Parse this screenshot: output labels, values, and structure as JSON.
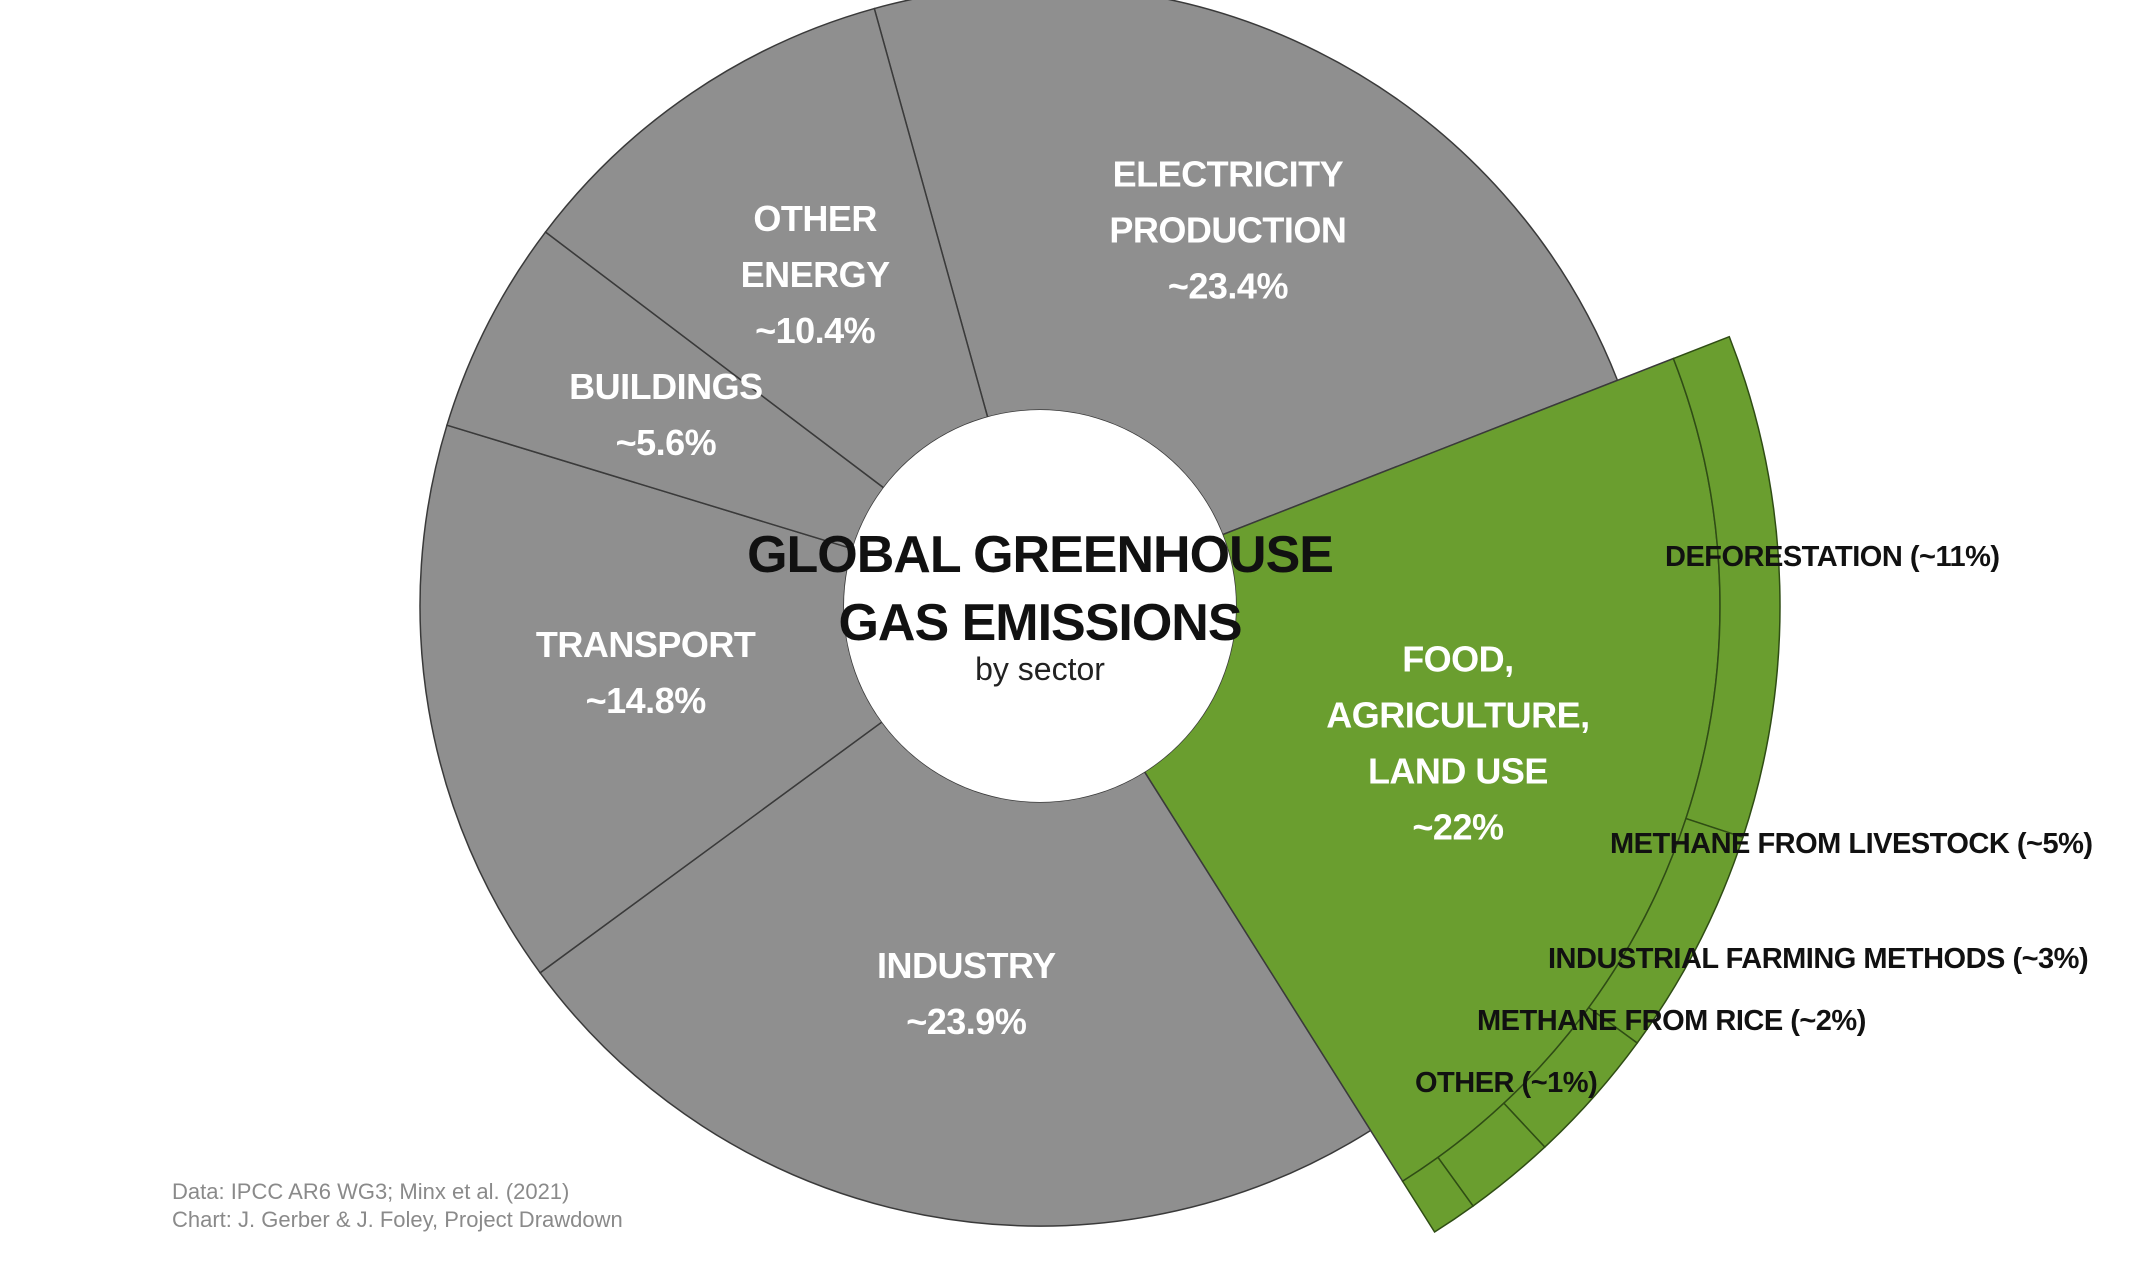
{
  "chart_data": {
    "type": "pie",
    "title_lines": [
      "GLOBAL GREENHOUSE",
      "GAS EMISSIONS"
    ],
    "subtitle": "by sector",
    "series": [
      {
        "label_lines": [
          "ELECTRICITY",
          "PRODUCTION"
        ],
        "value_label": "~23.4%",
        "value": 23.4,
        "color": "#8f8f8f"
      },
      {
        "label_lines": [
          "FOOD,",
          "AGRICULTURE,",
          "LAND USE"
        ],
        "value_label": "~22%",
        "value": 22,
        "color": "#6a9e2f"
      },
      {
        "label_lines": [
          "INDUSTRY"
        ],
        "value_label": "~23.9%",
        "value": 23.9,
        "color": "#8f8f8f"
      },
      {
        "label_lines": [
          "TRANSPORT"
        ],
        "value_label": "~14.8%",
        "value": 14.8,
        "color": "#8f8f8f"
      },
      {
        "label_lines": [
          "BUILDINGS"
        ],
        "value_label": "~5.6%",
        "value": 5.6,
        "color": "#8f8f8f"
      },
      {
        "label_lines": [
          "OTHER",
          "ENERGY"
        ],
        "value_label": "~10.4%",
        "value": 10.4,
        "color": "#8f8f8f"
      }
    ],
    "breakdown": {
      "parent": "FOOD, AGRICULTURE, LAND USE",
      "color": "#6a9e2f",
      "items": [
        {
          "label": "DEFORESTATION (~11%)",
          "value": 11
        },
        {
          "label": "METHANE FROM LIVESTOCK (~5%)",
          "value": 5
        },
        {
          "label": "INDUSTRIAL FARMING METHODS (~3%)",
          "value": 3
        },
        {
          "label": "METHANE FROM RICE (~2%)",
          "value": 2
        },
        {
          "label": "OTHER (~1%)",
          "value": 1
        }
      ]
    }
  },
  "credits": {
    "data": "Data: IPCC AR6 WG3; Minx et al. (2021)",
    "chart": "Chart: J. Gerber & J. Foley, Project Drawdown"
  }
}
